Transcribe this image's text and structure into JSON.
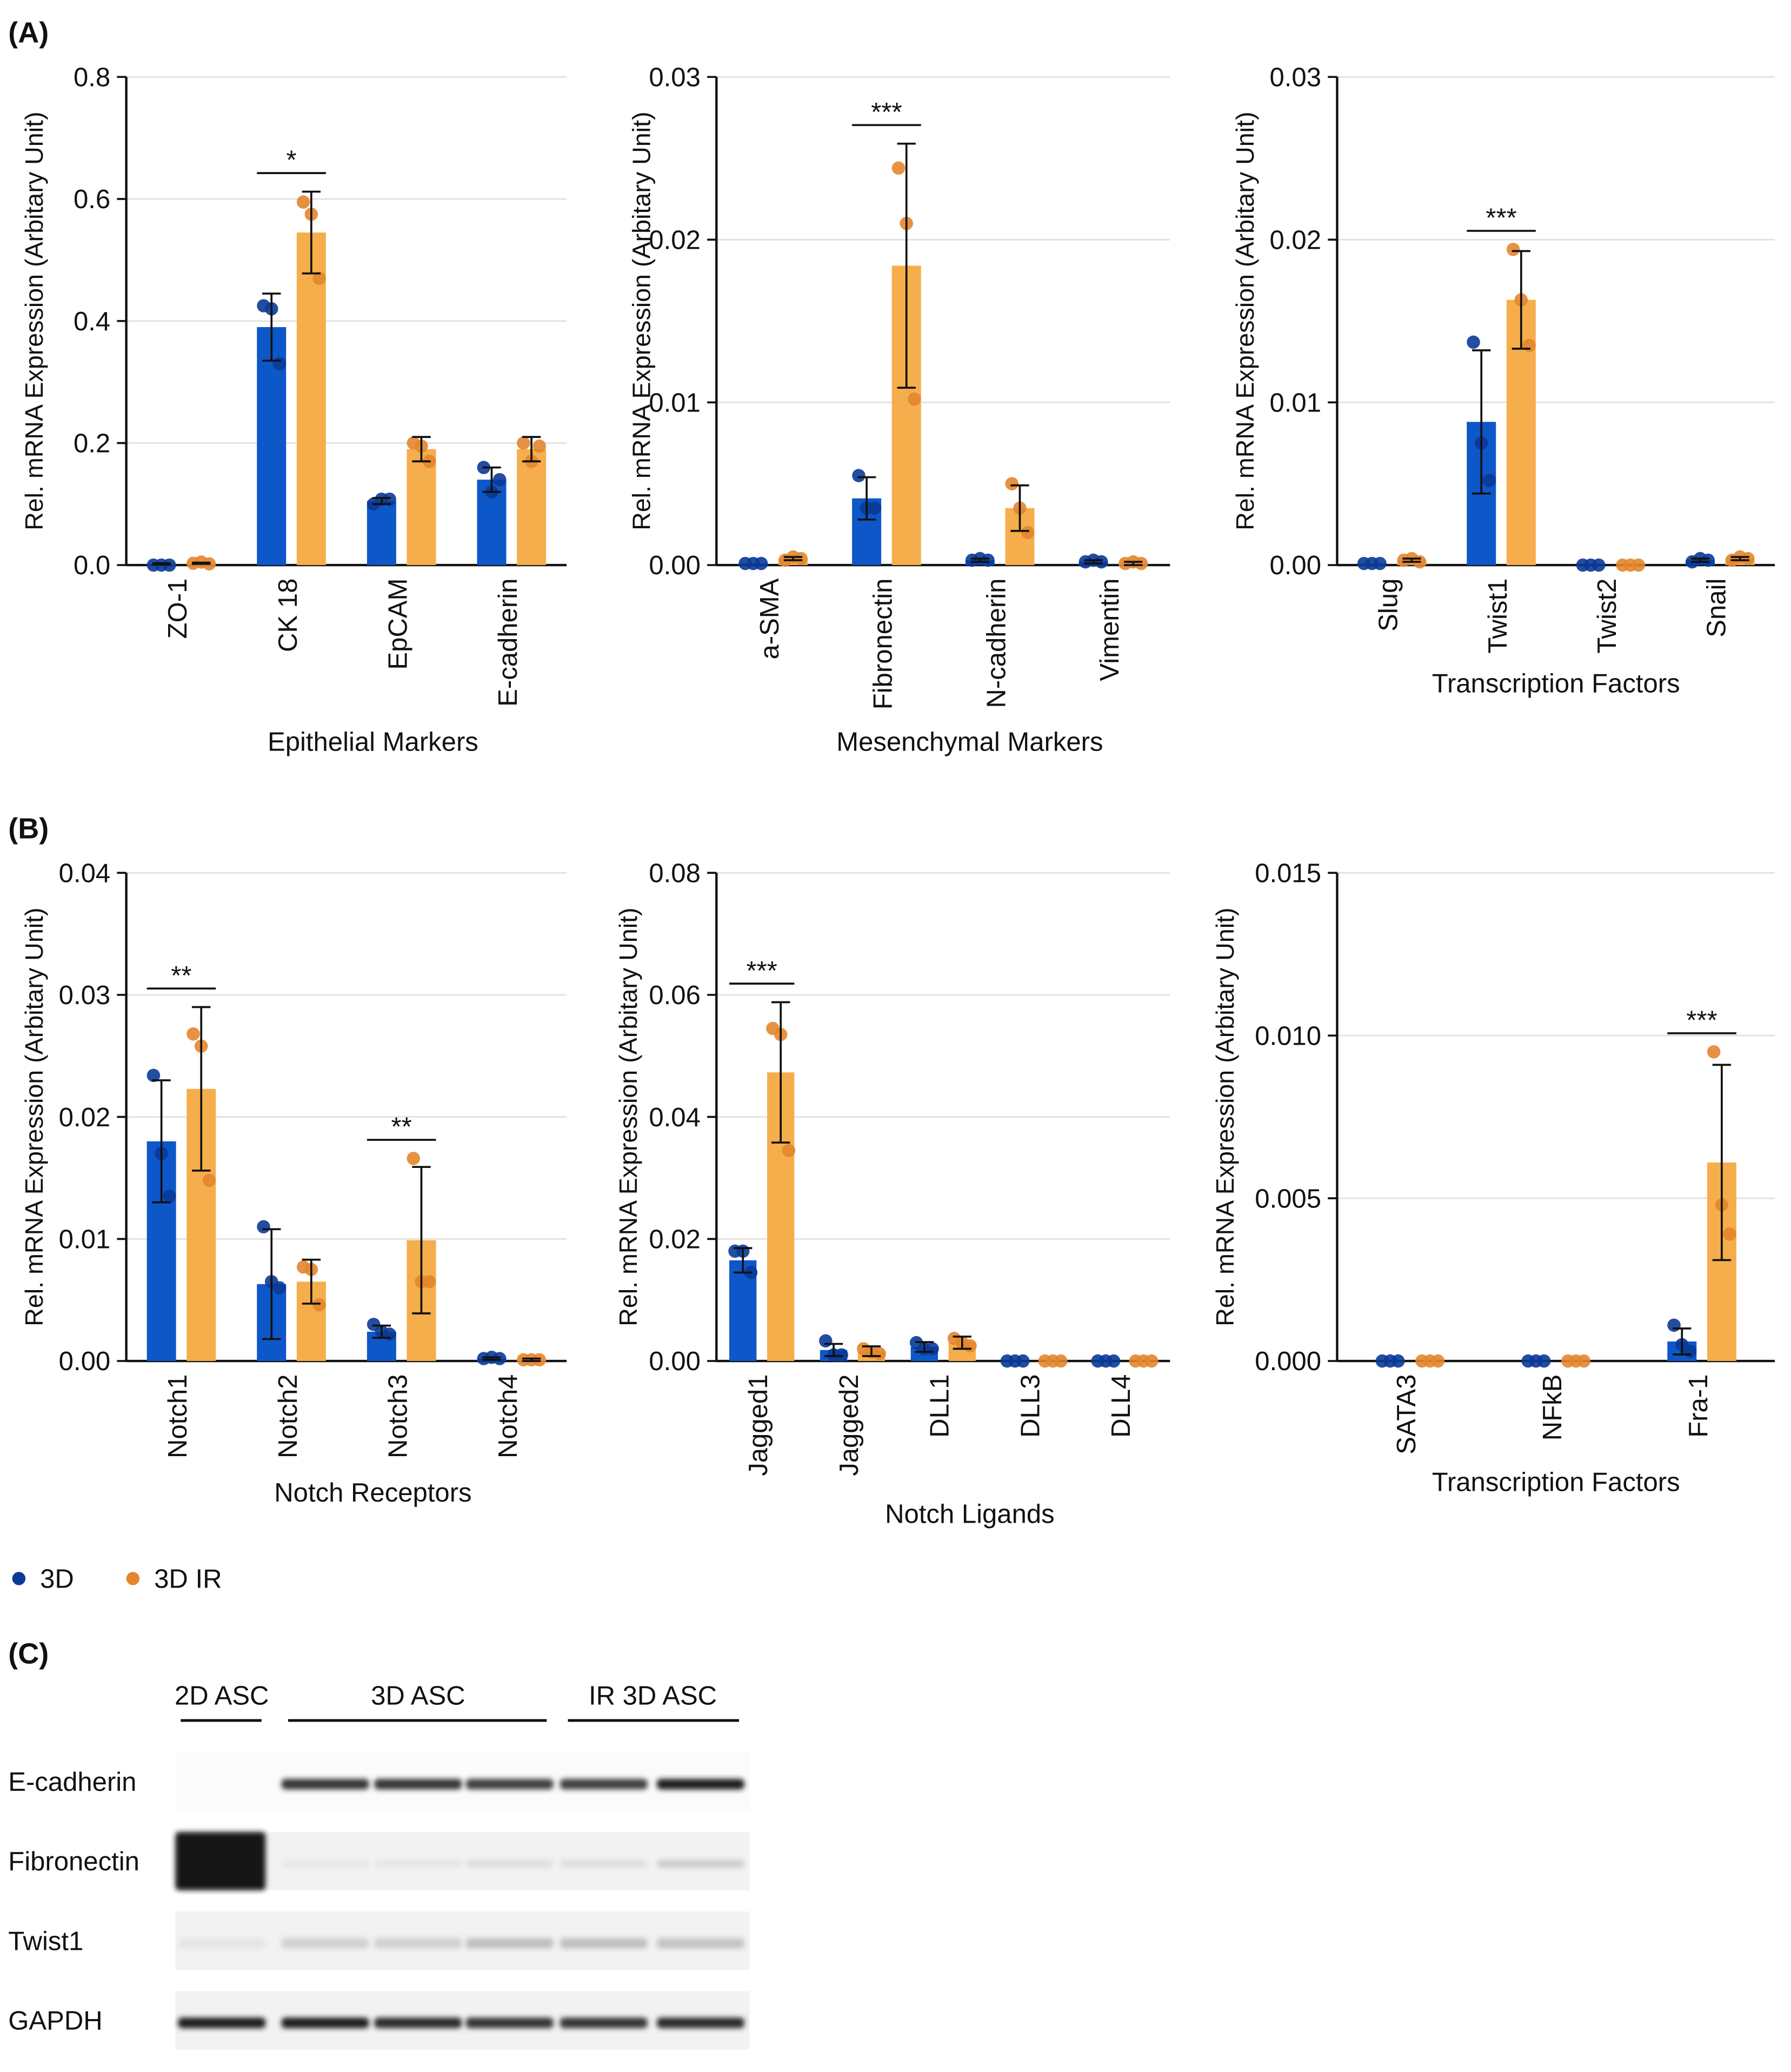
{
  "panels": {
    "A": "(A)",
    "B": "(B)",
    "C": "(C)"
  },
  "colors": {
    "s3d": "#0d57c9",
    "s3d_dot": "#0a3a96",
    "s3dir": "#f5ae4b",
    "s3dir_dot": "#e3862e",
    "grid": "#e2e2e2"
  },
  "legend": [
    {
      "label": "3D",
      "color": "#0a3a96"
    },
    {
      "label": "3D IR",
      "color": "#e3862e"
    }
  ],
  "chart_data": [
    {
      "type": "bar",
      "ylabel": "Rel. mRNA Expression (Arbitary Unit)",
      "xlabel": "Epithelial Markers",
      "ylim": [
        0,
        0.8
      ],
      "ticks": [
        "0.0",
        "0.2",
        "0.4",
        "0.6",
        "0.8"
      ],
      "tick_values": [
        0,
        0.2,
        0.4,
        0.6,
        0.8
      ],
      "categories": [
        "ZO-1",
        "CK 18",
        "EpCAM",
        "E-cadherin"
      ],
      "series": [
        {
          "name": "3D",
          "values": [
            0.002,
            0.39,
            0.105,
            0.14
          ],
          "err": [
            0.001,
            0.055,
            0.005,
            0.02
          ],
          "points": [
            [
              0,
              0,
              0
            ],
            [
              0.425,
              0.42,
              0.33
            ],
            [
              0.1,
              0.108,
              0.108
            ],
            [
              0.16,
              0.12,
              0.14
            ]
          ]
        },
        {
          "name": "3D IR",
          "values": [
            0.003,
            0.545,
            0.19,
            0.19
          ],
          "err": [
            0.001,
            0.067,
            0.02,
            0.02
          ],
          "points": [
            [
              0.003,
              0.005,
              0.002
            ],
            [
              0.595,
              0.575,
              0.47
            ],
            [
              0.2,
              0.195,
              0.17
            ],
            [
              0.2,
              0.17,
              0.195
            ]
          ]
        }
      ],
      "significance": [
        {
          "category": "CK 18",
          "label": "*"
        }
      ]
    },
    {
      "type": "bar",
      "ylabel": "Rel. mRNA Expression (Arbitary Unit)",
      "xlabel": "Mesenchymal Markers",
      "ylim": [
        0,
        0.03
      ],
      "ticks": [
        "0.00",
        "0.01",
        "0.02",
        "0.03"
      ],
      "tick_values": [
        0,
        0.01,
        0.02,
        0.03
      ],
      "categories": [
        "a-SMA",
        "Fibronectin",
        "N-cadherin",
        "Vimentin"
      ],
      "series": [
        {
          "name": "3D",
          "values": [
            0.0001,
            0.0041,
            0.0003,
            0.0002
          ],
          "err": [
            0,
            0.0013,
            0.0001,
            0.0001
          ],
          "points": [
            [
              0.0001,
              0.0001,
              0.0001
            ],
            [
              0.0055,
              0.0035,
              0.0035
            ],
            [
              0.0003,
              0.0004,
              0.0003
            ],
            [
              0.0002,
              0.0003,
              0.0002
            ]
          ]
        },
        {
          "name": "3D IR",
          "values": [
            0.0004,
            0.0184,
            0.0035,
            0.0001
          ],
          "err": [
            0.0001,
            0.0075,
            0.0014,
            0.0001
          ],
          "points": [
            [
              0.0003,
              0.0005,
              0.0004
            ],
            [
              0.0244,
              0.021,
              0.0102
            ],
            [
              0.005,
              0.0035,
              0.002
            ],
            [
              0.0001,
              0.0002,
              0.0001
            ]
          ]
        }
      ],
      "significance": [
        {
          "category": "Fibronectin",
          "label": "***"
        }
      ]
    },
    {
      "type": "bar",
      "ylabel": "Rel. mRNA Expression (Arbitary Unit)",
      "xlabel": "Transcription Factors",
      "ylim": [
        0,
        0.03
      ],
      "ticks": [
        "0.00",
        "0.01",
        "0.02",
        "0.03"
      ],
      "tick_values": [
        0,
        0.01,
        0.02,
        0.03
      ],
      "categories": [
        "Slug",
        "Twist1",
        "Twist2",
        "Snail"
      ],
      "series": [
        {
          "name": "3D",
          "values": [
            0.0001,
            0.0088,
            0,
            0.0003
          ],
          "err": [
            0,
            0.0044,
            0,
            0.0001
          ],
          "points": [
            [
              0.0001,
              0.0001,
              0.0001
            ],
            [
              0.0137,
              0.0075,
              0.0052
            ],
            [
              0,
              0,
              0
            ],
            [
              0.0002,
              0.0004,
              0.0003
            ]
          ]
        },
        {
          "name": "3D IR",
          "values": [
            0.0003,
            0.0163,
            0,
            0.0004
          ],
          "err": [
            0.0001,
            0.003,
            0,
            0.0001
          ],
          "points": [
            [
              0.0003,
              0.0004,
              0.0002
            ],
            [
              0.0194,
              0.0163,
              0.0135
            ],
            [
              0,
              0,
              0
            ],
            [
              0.0003,
              0.0005,
              0.0004
            ]
          ]
        }
      ],
      "significance": [
        {
          "category": "Twist1",
          "label": "***"
        }
      ]
    },
    {
      "type": "bar",
      "ylabel": "Rel. mRNA Expression (Arbitary Unit)",
      "xlabel": "Notch Receptors",
      "ylim": [
        0,
        0.04
      ],
      "ticks": [
        "0.00",
        "0.01",
        "0.02",
        "0.03",
        "0.04"
      ],
      "tick_values": [
        0,
        0.01,
        0.02,
        0.03,
        0.04
      ],
      "categories": [
        "Notch1",
        "Notch2",
        "Notch3",
        "Notch4"
      ],
      "series": [
        {
          "name": "3D",
          "values": [
            0.018,
            0.0063,
            0.0024,
            0.0002
          ],
          "err": [
            0.005,
            0.0045,
            0.0005,
            0.0001
          ],
          "points": [
            [
              0.0234,
              0.017,
              0.0135
            ],
            [
              0.011,
              0.0065,
              0.006
            ],
            [
              0.003,
              0.0024,
              0.0022
            ],
            [
              0.0002,
              0.0003,
              0.0002
            ]
          ]
        },
        {
          "name": "3D IR",
          "values": [
            0.0223,
            0.0065,
            0.0099,
            0.0001
          ],
          "err": [
            0.0067,
            0.0018,
            0.006,
            0.0001
          ],
          "points": [
            [
              0.0268,
              0.0258,
              0.0148
            ],
            [
              0.0077,
              0.0075,
              0.0046
            ],
            [
              0.0166,
              0.0065,
              0.0065
            ],
            [
              0.0001,
              0.0001,
              0.0001
            ]
          ]
        }
      ],
      "significance": [
        {
          "category": "Notch1",
          "label": "**"
        },
        {
          "category": "Notch3",
          "label": "**"
        }
      ]
    },
    {
      "type": "bar",
      "ylabel": "Rel. mRNA Expression (Arbitary Unit)",
      "xlabel": "Notch Ligands",
      "ylim": [
        0,
        0.08
      ],
      "ticks": [
        "0.00",
        "0.02",
        "0.04",
        "0.06",
        "0.08"
      ],
      "tick_values": [
        0,
        0.02,
        0.04,
        0.06,
        0.08
      ],
      "categories": [
        "Jagged1",
        "Jagged2",
        "DLL1",
        "DLL3",
        "DLL4"
      ],
      "series": [
        {
          "name": "3D",
          "values": [
            0.0165,
            0.0018,
            0.0023,
            0,
            0
          ],
          "err": [
            0.002,
            0.001,
            0.0008,
            0,
            0
          ],
          "points": [
            [
              0.018,
              0.018,
              0.0145
            ],
            [
              0.0033,
              0.001,
              0.001
            ],
            [
              0.003,
              0.002,
              0.002
            ],
            [
              0,
              0,
              0
            ],
            [
              0,
              0,
              0
            ]
          ]
        },
        {
          "name": "3D IR",
          "values": [
            0.0473,
            0.0016,
            0.003,
            0,
            0
          ],
          "err": [
            0.0115,
            0.0008,
            0.001,
            0,
            0
          ],
          "points": [
            [
              0.0545,
              0.0535,
              0.0345
            ],
            [
              0.002,
              0.0015,
              0.0012
            ],
            [
              0.0037,
              0.003,
              0.0025
            ],
            [
              0,
              0,
              0
            ],
            [
              0,
              0,
              0
            ]
          ]
        }
      ],
      "significance": [
        {
          "category": "Jagged1",
          "label": "***"
        }
      ]
    },
    {
      "type": "bar",
      "ylabel": "Rel. mRNA Expression (Arbitary Unit)",
      "xlabel": "Transcription Factors",
      "ylim": [
        0,
        0.015
      ],
      "ticks": [
        "0.000",
        "0.005",
        "0.010",
        "0.015"
      ],
      "tick_values": [
        0,
        0.005,
        0.01,
        0.015
      ],
      "categories": [
        "SATA3",
        "NFkB",
        "Fra-1"
      ],
      "series": [
        {
          "name": "3D",
          "values": [
            0,
            0,
            0.0006
          ],
          "err": [
            0,
            0,
            0.0004
          ],
          "points": [
            [
              0,
              0,
              0
            ],
            [
              0,
              0,
              0
            ],
            [
              0.0011,
              0.0005,
              0.0003
            ]
          ]
        },
        {
          "name": "3D IR",
          "values": [
            0,
            0,
            0.0061
          ],
          "err": [
            0,
            0,
            0.003
          ],
          "points": [
            [
              0,
              0,
              0
            ],
            [
              0,
              0,
              0
            ],
            [
              0.0095,
              0.0048,
              0.0039
            ]
          ]
        }
      ],
      "significance": [
        {
          "category": "Fra-1",
          "label": "***"
        }
      ]
    }
  ],
  "blot": {
    "groups": [
      "2D ASC",
      "3D ASC",
      "IR 3D ASC"
    ],
    "rows": [
      {
        "label": "E-cadherin",
        "intensity": [
          0,
          0.85,
          0.85,
          0.8,
          0.8,
          0.95
        ]
      },
      {
        "label": "Fibronectin",
        "intensity": [
          1,
          0.02,
          0.03,
          0.06,
          0.06,
          0.15
        ]
      },
      {
        "label": "Twist1",
        "intensity": [
          0.03,
          0.12,
          0.12,
          0.2,
          0.2,
          0.18
        ]
      },
      {
        "label": "GAPDH",
        "intensity": [
          0.95,
          0.95,
          0.9,
          0.85,
          0.85,
          0.9
        ]
      }
    ]
  }
}
